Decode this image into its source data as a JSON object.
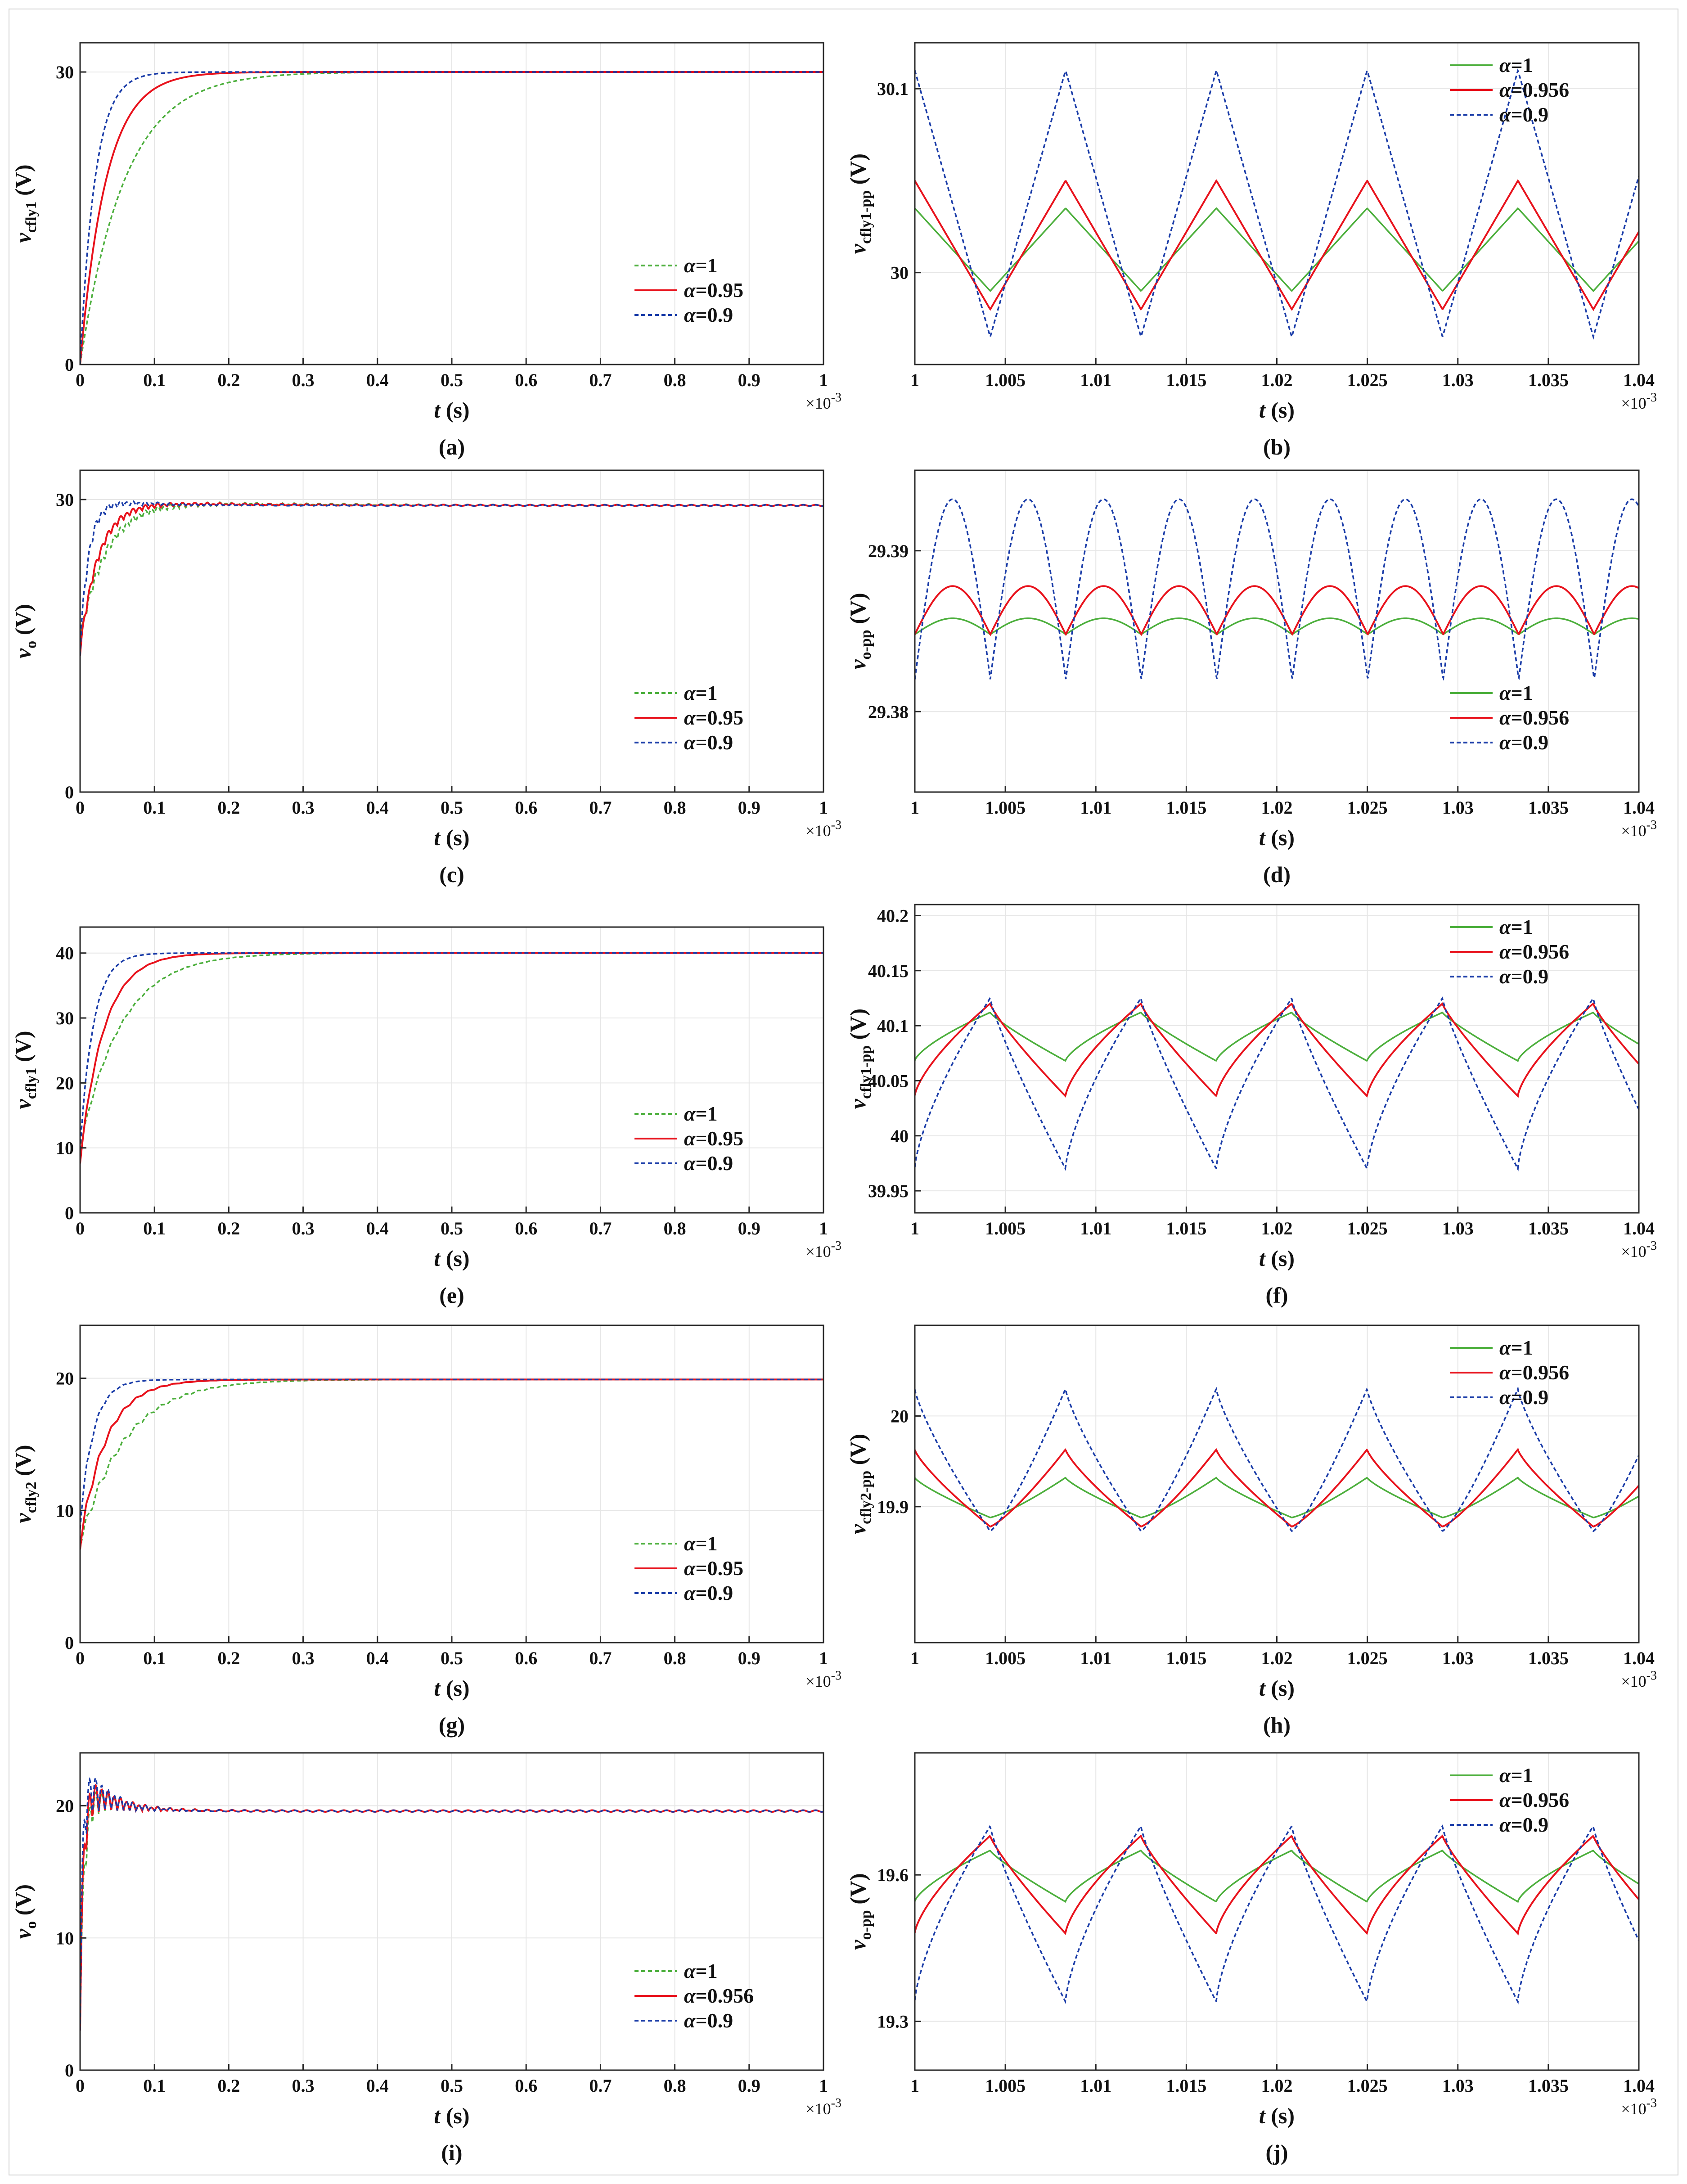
{
  "colors": {
    "g": "#4caf3c",
    "r": "#e8121c",
    "b": "#1a3ca8",
    "grid": "#e6e6e6",
    "axis": "#262626"
  },
  "chart_data": [
    {
      "id": "a",
      "caption": "(a)",
      "type": "line",
      "xlabel_italic": "t",
      "xlabel_unit": " (s)",
      "exponent": "×10-3",
      "ylabel": {
        "base": "v",
        "sub": "cfly1",
        "unit": " (V)"
      },
      "xlim": [
        0,
        1
      ],
      "ylim": [
        0,
        33
      ],
      "xticks": [
        0,
        0.1,
        0.2,
        0.3,
        0.4,
        0.5,
        0.6,
        0.7,
        0.8,
        0.9,
        1
      ],
      "xticklabels": [
        "0",
        "0.1",
        "0.2",
        "0.3",
        "0.4",
        "0.5",
        "0.6",
        "0.7",
        "0.8",
        "0.9",
        "1"
      ],
      "yticks": [
        0,
        30
      ],
      "yticklabels": [
        "0",
        "30"
      ],
      "legend": {
        "position": "lower-right",
        "entries": [
          [
            "α",
            "=1"
          ],
          [
            "α",
            "=0.95"
          ],
          [
            "α",
            "=0.9"
          ]
        ]
      },
      "series": [
        {
          "color": "g",
          "dash": "dashed",
          "model": "exp",
          "start": 0,
          "final": 30,
          "tau": 0.06
        },
        {
          "color": "r",
          "dash": "solid",
          "model": "exp",
          "start": 0,
          "final": 30,
          "tau": 0.035
        },
        {
          "color": "b",
          "dash": "dashed",
          "model": "exp",
          "start": 0,
          "final": 30,
          "tau": 0.02
        }
      ]
    },
    {
      "id": "b",
      "caption": "(b)",
      "type": "line",
      "xlabel_italic": "t",
      "xlabel_unit": " (s)",
      "exponent": "×10-3",
      "ylabel": {
        "base": "v",
        "sub": "cfly1-pp",
        "unit": " (V)"
      },
      "xlim": [
        1,
        1.04
      ],
      "ylim": [
        29.95,
        30.125
      ],
      "xticks": [
        1,
        1.005,
        1.01,
        1.015,
        1.02,
        1.025,
        1.03,
        1.035,
        1.04
      ],
      "xticklabels": [
        "1",
        "1.005",
        "1.01",
        "1.015",
        "1.02",
        "1.025",
        "1.03",
        "1.035",
        "1.04"
      ],
      "yticks": [
        30,
        30.1
      ],
      "yticklabels": [
        "30",
        "30.1"
      ],
      "legend": {
        "position": "top-right",
        "entries": [
          [
            "α",
            "=1"
          ],
          [
            "α",
            "=0.956"
          ],
          [
            "α",
            "=0.9"
          ]
        ]
      },
      "series": [
        {
          "color": "g",
          "dash": "solid",
          "model": "tri",
          "period": 0.00833,
          "t0": 1.0,
          "start_phase": "high",
          "lo": 29.99,
          "hi": 30.035
        },
        {
          "color": "r",
          "dash": "solid",
          "model": "tri",
          "period": 0.00833,
          "t0": 1.0,
          "start_phase": "high",
          "lo": 29.98,
          "hi": 30.05
        },
        {
          "color": "b",
          "dash": "dashed",
          "model": "tri",
          "period": 0.00833,
          "t0": 1.0,
          "start_phase": "high",
          "lo": 29.965,
          "hi": 30.11
        }
      ]
    },
    {
      "id": "c",
      "caption": "(c)",
      "type": "line",
      "xlabel_italic": "t",
      "xlabel_unit": " (s)",
      "exponent": "×10-3",
      "ylabel": {
        "base": "v",
        "sub": "o",
        "unit": " (V)"
      },
      "xlim": [
        0,
        1
      ],
      "ylim": [
        0,
        33
      ],
      "xticks": [
        0,
        0.1,
        0.2,
        0.3,
        0.4,
        0.5,
        0.6,
        0.7,
        0.8,
        0.9,
        1
      ],
      "xticklabels": [
        "0",
        "0.1",
        "0.2",
        "0.3",
        "0.4",
        "0.5",
        "0.6",
        "0.7",
        "0.8",
        "0.9",
        "1"
      ],
      "yticks": [
        0,
        30
      ],
      "yticklabels": [
        "0",
        "30"
      ],
      "legend": {
        "position": "lower-right",
        "entries": [
          [
            "α",
            "=1"
          ],
          [
            "α",
            "=0.95"
          ],
          [
            "α",
            "=0.9"
          ]
        ]
      },
      "series": [
        {
          "color": "g",
          "dash": "dashed",
          "model": "ring",
          "start": 15,
          "final": 29.4,
          "tau": 0.035,
          "osc_amp": 0.35,
          "osc_period": 0.0167
        },
        {
          "color": "r",
          "dash": "solid",
          "model": "ring",
          "start": 14,
          "final": 29.4,
          "tau": 0.025,
          "osc_amp": 0.3,
          "osc_period": 0.0167
        },
        {
          "color": "b",
          "dash": "dashed",
          "model": "ring",
          "start": 14,
          "final": 29.4,
          "tau": 0.012,
          "osc_amp": 0.4,
          "osc_period": 0.0167
        }
      ]
    },
    {
      "id": "d",
      "caption": "(d)",
      "type": "line",
      "xlabel_italic": "t",
      "xlabel_unit": " (s)",
      "exponent": "×10-3",
      "ylabel": {
        "base": "v",
        "sub": "o-pp",
        "unit": " (V)"
      },
      "xlim": [
        1,
        1.04
      ],
      "ylim": [
        29.375,
        29.395
      ],
      "xticks": [
        1,
        1.005,
        1.01,
        1.015,
        1.02,
        1.025,
        1.03,
        1.035,
        1.04
      ],
      "xticklabels": [
        "1",
        "1.005",
        "1.01",
        "1.015",
        "1.02",
        "1.025",
        "1.03",
        "1.035",
        "1.04"
      ],
      "yticks": [
        29.38,
        29.39
      ],
      "yticklabels": [
        "29.38",
        "29.39"
      ],
      "legend": {
        "position": "lower-right",
        "entries": [
          [
            "α",
            "=1"
          ],
          [
            "α",
            "=0.956"
          ],
          [
            "α",
            "=0.9"
          ]
        ]
      },
      "series": [
        {
          "color": "g",
          "dash": "solid",
          "model": "arch",
          "period": 0.00417,
          "t0": 1.0,
          "base": 29.3848,
          "peak": 29.3858
        },
        {
          "color": "r",
          "dash": "solid",
          "model": "arch",
          "period": 0.00417,
          "t0": 1.0,
          "base": 29.3848,
          "peak": 29.3878
        },
        {
          "color": "b",
          "dash": "dashed",
          "model": "arch",
          "period": 0.00417,
          "t0": 1.0,
          "base": 29.382,
          "peak": 29.3932
        }
      ]
    },
    {
      "id": "e",
      "caption": "(e)",
      "type": "line",
      "xlabel_italic": "t",
      "xlabel_unit": " (s)",
      "exponent": "×10-3",
      "ylabel": {
        "base": "v",
        "sub": "cfly1",
        "unit": " (V)"
      },
      "xlim": [
        0,
        1
      ],
      "ylim": [
        0,
        44
      ],
      "xticks": [
        0,
        0.1,
        0.2,
        0.3,
        0.4,
        0.5,
        0.6,
        0.7,
        0.8,
        0.9,
        1
      ],
      "xticklabels": [
        "0",
        "0.1",
        "0.2",
        "0.3",
        "0.4",
        "0.5",
        "0.6",
        "0.7",
        "0.8",
        "0.9",
        "1"
      ],
      "yticks": [
        0,
        10,
        20,
        30,
        40
      ],
      "yticklabels": [
        "0",
        "10",
        "20",
        "30",
        "40"
      ],
      "legend": {
        "position": "lower-right",
        "entries": [
          [
            "α",
            "=1"
          ],
          [
            "α",
            "=0.95"
          ],
          [
            "α",
            "=0.9"
          ]
        ]
      },
      "series": [
        {
          "color": "g",
          "dash": "dashed",
          "model": "exp",
          "start": 10,
          "final": 40,
          "tau": 0.055,
          "ripple": 0.8,
          "ripple_period": 0.0167
        },
        {
          "color": "r",
          "dash": "solid",
          "model": "exp",
          "start": 8,
          "final": 40,
          "tau": 0.032,
          "ripple": 0.8,
          "ripple_period": 0.0167
        },
        {
          "color": "b",
          "dash": "dashed",
          "model": "exp",
          "start": 10,
          "final": 40,
          "tau": 0.018,
          "ripple": 0.6,
          "ripple_period": 0.0167
        }
      ]
    },
    {
      "id": "f",
      "caption": "(f)",
      "type": "line",
      "xlabel_italic": "t",
      "xlabel_unit": " (s)",
      "exponent": "×10-3",
      "ylabel": {
        "base": "v",
        "sub": "cfly1-pp",
        "unit": " (V)"
      },
      "xlim": [
        1,
        1.04
      ],
      "ylim": [
        39.93,
        40.21
      ],
      "xticks": [
        1,
        1.005,
        1.01,
        1.015,
        1.02,
        1.025,
        1.03,
        1.035,
        1.04
      ],
      "xticklabels": [
        "1",
        "1.005",
        "1.01",
        "1.015",
        "1.02",
        "1.025",
        "1.03",
        "1.035",
        "1.04"
      ],
      "yticks": [
        39.95,
        40,
        40.05,
        40.1,
        40.15,
        40.2
      ],
      "yticklabels": [
        "39.95",
        "40",
        "40.05",
        "40.1",
        "40.15",
        "40.2"
      ],
      "legend": {
        "position": "top-right",
        "entries": [
          [
            "α",
            "=1"
          ],
          [
            "α",
            "=0.956"
          ],
          [
            "α",
            "=0.9"
          ]
        ]
      },
      "series": [
        {
          "color": "g",
          "dash": "solid",
          "model": "saw",
          "period": 0.00833,
          "t0": 0.99583,
          "lo": 40.068,
          "hi": 40.112,
          "drop": 40.058
        },
        {
          "color": "r",
          "dash": "solid",
          "model": "saw",
          "period": 0.00833,
          "t0": 0.99583,
          "lo": 40.036,
          "hi": 40.12,
          "drop": 40.055
        },
        {
          "color": "b",
          "dash": "dashed",
          "model": "saw",
          "period": 0.00833,
          "t0": 0.99583,
          "lo": 39.97,
          "hi": 40.125,
          "drop": 40.01
        }
      ]
    },
    {
      "id": "g",
      "caption": "(g)",
      "type": "line",
      "xlabel_italic": "t",
      "xlabel_unit": " (s)",
      "exponent": "×10-3",
      "ylabel": {
        "base": "v",
        "sub": "cfly2",
        "unit": " (V)"
      },
      "xlim": [
        0,
        1
      ],
      "ylim": [
        0,
        24
      ],
      "xticks": [
        0,
        0.1,
        0.2,
        0.3,
        0.4,
        0.5,
        0.6,
        0.7,
        0.8,
        0.9,
        1
      ],
      "xticklabels": [
        "0",
        "0.1",
        "0.2",
        "0.3",
        "0.4",
        "0.5",
        "0.6",
        "0.7",
        "0.8",
        "0.9",
        "1"
      ],
      "yticks": [
        0,
        10,
        20
      ],
      "yticklabels": [
        "0",
        "10",
        "20"
      ],
      "legend": {
        "position": "lower-right",
        "entries": [
          [
            "α",
            "=1"
          ],
          [
            "α",
            "=0.95"
          ],
          [
            "α",
            "=0.9"
          ]
        ]
      },
      "series": [
        {
          "color": "g",
          "dash": "dashed",
          "model": "exp",
          "start": 7.5,
          "final": 19.9,
          "tau": 0.06,
          "ripple": 0.9,
          "ripple_period": 0.0167
        },
        {
          "color": "r",
          "dash": "solid",
          "model": "exp",
          "start": 7.5,
          "final": 19.9,
          "tau": 0.035,
          "ripple": 0.9,
          "ripple_period": 0.0167
        },
        {
          "color": "b",
          "dash": "dashed",
          "model": "exp",
          "start": 9,
          "final": 19.9,
          "tau": 0.018,
          "ripple": 0.8,
          "ripple_period": 0.0167
        }
      ]
    },
    {
      "id": "h",
      "caption": "(h)",
      "type": "line",
      "xlabel_italic": "t",
      "xlabel_unit": " (s)",
      "exponent": "×10-3",
      "ylabel": {
        "base": "v",
        "sub": "cfly2-pp",
        "unit": " (V)"
      },
      "xlim": [
        1,
        1.04
      ],
      "ylim": [
        19.75,
        20.1
      ],
      "xticks": [
        1,
        1.005,
        1.01,
        1.015,
        1.02,
        1.025,
        1.03,
        1.035,
        1.04
      ],
      "xticklabels": [
        "1",
        "1.005",
        "1.01",
        "1.015",
        "1.02",
        "1.025",
        "1.03",
        "1.035",
        "1.04"
      ],
      "yticks": [
        19.9,
        20
      ],
      "yticklabels": [
        "19.9",
        "20"
      ],
      "legend": {
        "position": "top-right",
        "entries": [
          [
            "α",
            "=1"
          ],
          [
            "α",
            "=0.956"
          ],
          [
            "α",
            "=0.9"
          ]
        ]
      },
      "series": [
        {
          "color": "g",
          "dash": "solid",
          "model": "rise",
          "period": 0.00833,
          "t0": 0.99583,
          "lo": 19.888,
          "hi": 19.932
        },
        {
          "color": "r",
          "dash": "solid",
          "model": "rise",
          "period": 0.00833,
          "t0": 0.99583,
          "lo": 19.878,
          "hi": 19.963
        },
        {
          "color": "b",
          "dash": "dashed",
          "model": "rise",
          "period": 0.00833,
          "t0": 0.99583,
          "lo": 19.873,
          "hi": 20.03
        }
      ]
    },
    {
      "id": "i",
      "caption": "(i)",
      "type": "line",
      "xlabel_italic": "t",
      "xlabel_unit": " (s)",
      "exponent": "×10-3",
      "ylabel": {
        "base": "v",
        "sub": "o",
        "unit": " (V)"
      },
      "xlim": [
        0,
        1
      ],
      "ylim": [
        0,
        24
      ],
      "xticks": [
        0,
        0.1,
        0.2,
        0.3,
        0.4,
        0.5,
        0.6,
        0.7,
        0.8,
        0.9,
        1
      ],
      "xticklabels": [
        "0",
        "0.1",
        "0.2",
        "0.3",
        "0.4",
        "0.5",
        "0.6",
        "0.7",
        "0.8",
        "0.9",
        "1"
      ],
      "yticks": [
        0,
        10,
        20
      ],
      "yticklabels": [
        "0",
        "10",
        "20"
      ],
      "legend": {
        "position": "lower-right",
        "entries": [
          [
            "α",
            "=1"
          ],
          [
            "α",
            "=0.956"
          ],
          [
            "α",
            "=0.9"
          ]
        ]
      },
      "series": [
        {
          "color": "g",
          "dash": "dashed",
          "model": "ring",
          "start": 3,
          "final": 19.6,
          "tau": 0.006,
          "osc_amp": 1.0,
          "osc_period": 0.0167
        },
        {
          "color": "r",
          "dash": "solid",
          "model": "ring",
          "start": 3,
          "final": 19.6,
          "tau": 0.005,
          "osc_amp": 1.2,
          "osc_period": 0.0167
        },
        {
          "color": "b",
          "dash": "dashed",
          "model": "ring",
          "start": 3,
          "final": 19.6,
          "tau": 0.004,
          "osc_amp": 1.5,
          "osc_period": 0.0167
        }
      ]
    },
    {
      "id": "j",
      "caption": "(j)",
      "type": "line",
      "xlabel_italic": "t",
      "xlabel_unit": " (s)",
      "exponent": "×10-3",
      "ylabel": {
        "base": "v",
        "sub": "o-pp",
        "unit": " (V)"
      },
      "xlim": [
        1,
        1.04
      ],
      "ylim": [
        19.2,
        19.85
      ],
      "xticks": [
        1,
        1.005,
        1.01,
        1.015,
        1.02,
        1.025,
        1.03,
        1.035,
        1.04
      ],
      "xticklabels": [
        "1",
        "1.005",
        "1.01",
        "1.015",
        "1.02",
        "1.025",
        "1.03",
        "1.035",
        "1.04"
      ],
      "yticks": [
        19.3,
        19.6
      ],
      "yticklabels": [
        "19.3",
        "19.6"
      ],
      "legend": {
        "position": "top-right",
        "entries": [
          [
            "α",
            "=1"
          ],
          [
            "α",
            "=0.956"
          ],
          [
            "α",
            "=0.9"
          ]
        ]
      },
      "series": [
        {
          "color": "g",
          "dash": "solid",
          "model": "saw",
          "period": 0.00833,
          "t0": 0.99583,
          "lo": 19.545,
          "hi": 19.65,
          "drop": 19.52
        },
        {
          "color": "r",
          "dash": "solid",
          "model": "saw",
          "period": 0.00833,
          "t0": 0.99583,
          "lo": 19.48,
          "hi": 19.68,
          "drop": 19.53
        },
        {
          "color": "b",
          "dash": "dashed",
          "model": "saw",
          "period": 0.00833,
          "t0": 0.99583,
          "lo": 19.34,
          "hi": 19.7,
          "drop": 19.45
        }
      ]
    }
  ]
}
